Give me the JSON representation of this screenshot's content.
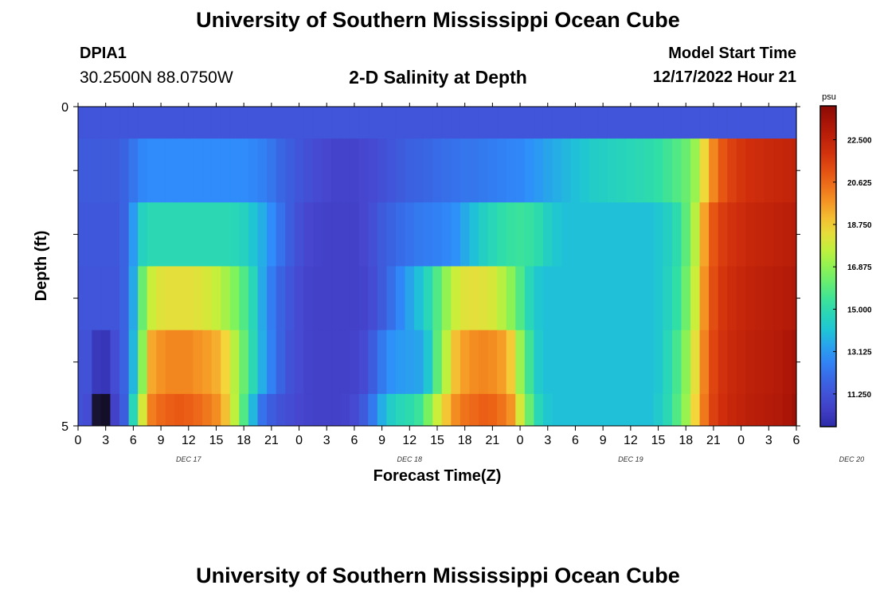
{
  "header": {
    "title": "University of Southern Mississippi Ocean Cube",
    "station_id": "DPIA1",
    "coordinates": "30.2500N  88.0750W",
    "chart_title": "2-D Salinity at Depth",
    "model_start_label": "Model Start Time",
    "model_start_value": "12/17/2022 Hour 21"
  },
  "footer": {
    "title": "University of Southern Mississippi Ocean Cube"
  },
  "chart_data": {
    "type": "heatmap",
    "title": "2-D Salinity at Depth",
    "xlabel": "Forecast Time(Z)",
    "ylabel": "Depth (ft)",
    "y_tick_labels": [
      "0",
      "5"
    ],
    "ylim": [
      0,
      5
    ],
    "x_tick_labels": [
      "0",
      "3",
      "6",
      "9",
      "12",
      "15",
      "18",
      "21",
      "0",
      "3",
      "6",
      "9",
      "12",
      "15",
      "18",
      "21",
      "0",
      "3",
      "6",
      "9",
      "12",
      "15",
      "18",
      "21",
      "0",
      "3",
      "6"
    ],
    "date_labels": [
      "DEC 17",
      "DEC 18",
      "DEC 19",
      "DEC 20"
    ],
    "colorbar_unit": "psu",
    "colorbar_ticks": [
      "22.500",
      "20.625",
      "18.750",
      "16.875",
      "15.000",
      "13.125",
      "11.250"
    ],
    "colorbar_range": [
      9.8,
      24.0
    ],
    "depth_layers": 5,
    "time_step_hours": 1,
    "rows": [
      [
        11.3,
        11.3,
        11.3,
        11.3,
        11.3,
        11.3,
        11.3,
        11.3,
        11.3,
        11.3,
        11.3,
        11.3,
        11.3,
        11.3,
        11.3,
        11.3,
        11.3,
        11.3,
        11.3,
        11.3,
        11.3,
        11.3,
        11.3,
        11.3,
        11.3,
        11.3,
        11.3,
        11.3,
        11.3,
        11.3,
        11.3,
        11.3,
        11.3,
        11.3,
        11.3,
        11.3,
        11.3,
        11.3,
        11.3,
        11.3,
        11.3,
        11.3,
        11.3,
        11.3,
        11.3,
        11.3,
        11.3,
        11.3,
        11.3,
        11.3,
        11.3,
        11.3,
        11.3,
        11.3,
        11.3,
        11.3,
        11.3,
        11.3,
        11.3,
        11.3,
        11.3,
        11.3,
        11.3,
        11.3,
        11.3,
        11.3,
        11.3,
        11.3,
        11.3,
        11.3,
        11.3,
        11.3,
        11.3,
        11.3,
        11.3,
        11.3,
        11.3,
        11.3,
        11.3
      ],
      [
        11.5,
        11.5,
        11.5,
        11.5,
        11.5,
        11.8,
        12.3,
        12.8,
        12.9,
        12.9,
        12.9,
        12.9,
        12.9,
        12.9,
        12.9,
        12.9,
        12.9,
        12.9,
        12.9,
        12.8,
        12.6,
        12.3,
        11.9,
        11.6,
        11.3,
        11.1,
        10.9,
        10.8,
        10.7,
        10.7,
        10.7,
        10.8,
        10.9,
        11.1,
        11.3,
        11.5,
        11.7,
        11.8,
        11.9,
        12.0,
        12.1,
        12.2,
        12.3,
        12.3,
        12.4,
        12.5,
        12.6,
        12.7,
        12.8,
        13.0,
        13.2,
        13.4,
        13.6,
        13.8,
        14.0,
        14.2,
        14.4,
        14.5,
        14.6,
        14.7,
        14.8,
        14.9,
        15.0,
        15.2,
        15.5,
        15.8,
        16.2,
        17.0,
        18.5,
        20.0,
        21.0,
        21.5,
        21.8,
        22.0,
        22.1,
        22.2,
        22.3,
        22.4,
        22.5
      ],
      [
        11.4,
        11.4,
        11.4,
        11.4,
        11.4,
        11.8,
        13.2,
        14.6,
        14.9,
        14.9,
        14.9,
        14.9,
        14.9,
        14.9,
        14.9,
        14.9,
        14.9,
        14.8,
        14.6,
        14.1,
        13.6,
        12.9,
        12.2,
        11.6,
        11.1,
        10.8,
        10.7,
        10.6,
        10.6,
        10.6,
        10.6,
        10.8,
        11.1,
        11.5,
        11.8,
        12.0,
        12.2,
        12.4,
        12.5,
        12.6,
        12.8,
        13.0,
        13.5,
        14.0,
        14.5,
        14.8,
        15.1,
        15.3,
        15.4,
        15.3,
        15.0,
        14.5,
        14.2,
        14.0,
        14.0,
        14.0,
        14.0,
        14.0,
        14.0,
        14.0,
        14.0,
        14.0,
        14.0,
        14.2,
        14.5,
        15.0,
        16.0,
        17.5,
        19.5,
        21.0,
        21.6,
        21.9,
        22.1,
        22.3,
        22.4,
        22.5,
        22.6,
        22.7,
        22.8
      ],
      [
        11.3,
        11.3,
        11.3,
        11.3,
        11.3,
        11.8,
        13.5,
        16.2,
        17.8,
        18.2,
        18.3,
        18.3,
        18.3,
        18.2,
        18.0,
        17.7,
        17.2,
        16.6,
        15.8,
        14.8,
        13.5,
        12.5,
        11.8,
        11.3,
        10.9,
        10.7,
        10.6,
        10.6,
        10.6,
        10.6,
        10.6,
        10.7,
        11.0,
        11.5,
        12.1,
        12.8,
        13.4,
        14.0,
        14.8,
        15.8,
        16.9,
        17.8,
        18.2,
        18.3,
        18.2,
        18.0,
        17.5,
        16.8,
        15.8,
        14.8,
        14.2,
        14.0,
        14.0,
        14.0,
        14.0,
        14.0,
        14.0,
        14.0,
        14.0,
        14.0,
        14.0,
        14.0,
        14.0,
        14.2,
        14.6,
        15.2,
        16.3,
        17.8,
        19.8,
        21.2,
        21.8,
        22.1,
        22.3,
        22.5,
        22.6,
        22.7,
        22.8,
        22.9,
        23.0
      ],
      [
        11.2,
        11.2,
        10.3,
        10.2,
        11.0,
        11.8,
        13.8,
        16.8,
        19.4,
        19.8,
        20.0,
        20.0,
        20.0,
        19.8,
        19.6,
        19.3,
        18.6,
        17.5,
        16.2,
        14.9,
        13.6,
        12.6,
        11.8,
        11.2,
        10.9,
        10.7,
        10.6,
        10.6,
        10.6,
        10.6,
        10.7,
        10.9,
        11.6,
        12.4,
        13.0,
        13.2,
        13.3,
        13.4,
        14.2,
        16.0,
        17.6,
        19.0,
        19.6,
        19.9,
        20.0,
        19.9,
        19.6,
        18.8,
        17.0,
        15.5,
        14.3,
        14.0,
        14.0,
        14.0,
        14.0,
        14.0,
        14.0,
        14.0,
        14.0,
        14.0,
        14.0,
        14.0,
        14.0,
        14.2,
        14.8,
        15.6,
        16.8,
        18.3,
        20.1,
        21.4,
        21.9,
        22.2,
        22.4,
        22.6,
        22.7,
        22.8,
        22.9,
        23.1,
        23.3
      ],
      [
        11.2,
        11.0,
        9.9,
        9.8,
        10.6,
        11.6,
        14.8,
        18.0,
        20.2,
        20.6,
        20.8,
        20.9,
        20.8,
        20.6,
        20.3,
        19.9,
        19.0,
        17.6,
        15.8,
        13.8,
        12.2,
        11.6,
        11.2,
        11.0,
        10.8,
        10.7,
        10.6,
        10.6,
        10.6,
        10.7,
        10.9,
        11.5,
        12.4,
        13.6,
        14.4,
        14.8,
        15.0,
        15.4,
        16.5,
        17.8,
        18.9,
        19.9,
        20.4,
        20.6,
        20.8,
        20.7,
        20.4,
        19.8,
        18.0,
        16.2,
        14.8,
        14.2,
        14.0,
        14.0,
        14.0,
        14.0,
        14.0,
        14.0,
        14.0,
        14.0,
        14.0,
        14.0,
        14.0,
        14.3,
        14.9,
        15.8,
        17.0,
        18.6,
        20.3,
        21.5,
        22.0,
        22.3,
        22.5,
        22.7,
        22.8,
        22.9,
        23.0,
        23.2,
        23.5
      ]
    ]
  }
}
